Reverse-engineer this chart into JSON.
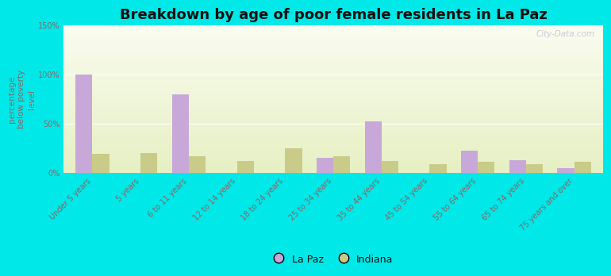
{
  "title": "Breakdown by age of poor female residents in La Paz",
  "ylabel": "percentage\nbelow poverty\nlevel",
  "categories": [
    "Under 5 years",
    "5 years",
    "6 to 11 years",
    "12 to 14 years",
    "18 to 24 years",
    "25 to 34 years",
    "35 to 44 years",
    "45 to 54 years",
    "55 to 64 years",
    "65 to 74 years",
    "75 years and over"
  ],
  "lapaz_values": [
    100,
    0,
    80,
    0,
    0,
    15,
    52,
    0,
    22,
    13,
    5
  ],
  "indiana_values": [
    19,
    20,
    17,
    12,
    25,
    17,
    12,
    9,
    11,
    9,
    11
  ],
  "lapaz_color": "#c8a8d8",
  "indiana_color": "#c8cc88",
  "ylim": [
    0,
    150
  ],
  "yticks": [
    0,
    50,
    100,
    150
  ],
  "ytick_labels": [
    "0%",
    "50%",
    "100%",
    "150%"
  ],
  "bar_width": 0.35,
  "outer_bg": "#00e8e8",
  "watermark": "City-Data.com",
  "title_fontsize": 13,
  "axis_label_fontsize": 7.5,
  "tick_fontsize": 7,
  "legend_fontsize": 9,
  "tick_color": "#886666",
  "label_color": "#886666",
  "title_color": "#111111"
}
